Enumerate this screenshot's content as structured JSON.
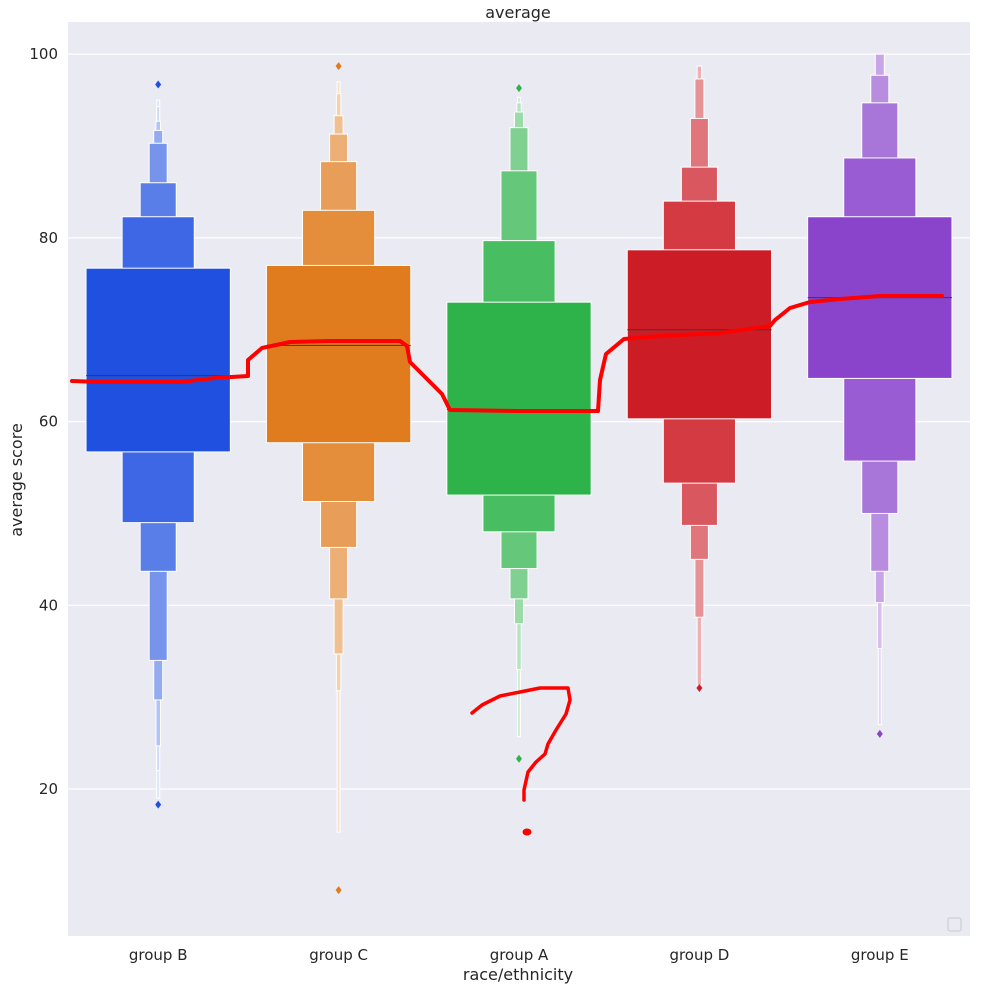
{
  "chart_data": {
    "type": "boxen",
    "title": "average",
    "xlabel": "race/ethnicity",
    "ylabel": "average score",
    "ylim": [
      4,
      103.5
    ],
    "yticks": [
      20,
      40,
      60,
      80,
      100
    ],
    "grid": true,
    "background": "#EAEAF2",
    "categories": [
      "group B",
      "group C",
      "group A",
      "group D",
      "group E"
    ],
    "colors": [
      "#2050E0",
      "#E07C1E",
      "#2EB34A",
      "#CC1C26",
      "#8A44CC"
    ],
    "series": [
      {
        "median": 65.0,
        "levels": [
          [
            56.7,
            76.7
          ],
          [
            49.0,
            82.3
          ],
          [
            43.7,
            86.0
          ],
          [
            34.0,
            90.3
          ],
          [
            29.7,
            91.7
          ],
          [
            24.7,
            92.7
          ],
          [
            22.0,
            94.3
          ],
          [
            19.0,
            95.0
          ]
        ],
        "outliers": [
          96.7,
          18.3
        ]
      },
      {
        "median": 68.3,
        "levels": [
          [
            57.7,
            77.0
          ],
          [
            51.3,
            83.0
          ],
          [
            46.3,
            88.3
          ],
          [
            40.7,
            91.3
          ],
          [
            34.7,
            93.3
          ],
          [
            30.7,
            95.7
          ],
          [
            15.3,
            97.0
          ]
        ],
        "outliers": [
          98.7,
          9.0
        ]
      },
      {
        "median": 61.3,
        "levels": [
          [
            52.0,
            73.0
          ],
          [
            48.0,
            79.7
          ],
          [
            44.0,
            87.3
          ],
          [
            40.7,
            92.0
          ],
          [
            38.0,
            93.7
          ],
          [
            33.0,
            94.7
          ],
          [
            25.7,
            95.3
          ]
        ],
        "outliers": [
          96.3,
          23.3
        ]
      },
      {
        "median": 70.0,
        "levels": [
          [
            60.3,
            78.7
          ],
          [
            53.3,
            84.0
          ],
          [
            48.7,
            87.7
          ],
          [
            45.0,
            93.0
          ],
          [
            38.7,
            97.3
          ],
          [
            31.3,
            98.7
          ]
        ],
        "outliers": [
          31.0
        ]
      },
      {
        "median": 73.5,
        "levels": [
          [
            64.7,
            82.3
          ],
          [
            55.7,
            88.7
          ],
          [
            50.0,
            94.7
          ],
          [
            43.7,
            97.7
          ],
          [
            40.3,
            100.0
          ],
          [
            35.3,
            100.0
          ],
          [
            27.0,
            100.0
          ]
        ],
        "outliers": [
          26.0
        ]
      }
    ]
  },
  "annotation_color": "#FF0000"
}
